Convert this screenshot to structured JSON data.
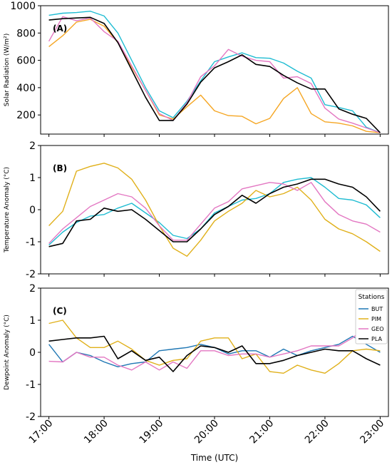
{
  "chart_data": [
    {
      "type": "line",
      "label": "(A)",
      "ylabel": "Solar Radiation (W/m²)",
      "ylim": [
        60,
        1000
      ],
      "yticks": [
        200,
        400,
        600,
        800,
        1000
      ],
      "x": [
        17.0,
        17.25,
        17.5,
        17.75,
        18.0,
        18.25,
        18.5,
        18.75,
        19.0,
        19.25,
        19.5,
        19.75,
        20.0,
        20.25,
        20.5,
        20.75,
        21.0,
        21.25,
        21.5,
        21.75,
        22.0,
        22.25,
        22.5,
        22.75,
        23.0
      ],
      "series": [
        {
          "name": "BUT",
          "color": "#1fbcd2",
          "values": [
            930,
            945,
            950,
            960,
            925,
            800,
            600,
            400,
            230,
            180,
            300,
            450,
            590,
            625,
            655,
            620,
            615,
            580,
            520,
            470,
            275,
            255,
            230,
            110,
            70
          ]
        },
        {
          "name": "PIM",
          "color": "#f5a623",
          "values": [
            700,
            780,
            880,
            900,
            850,
            730,
            550,
            380,
            200,
            170,
            260,
            345,
            230,
            195,
            190,
            135,
            175,
            320,
            400,
            210,
            150,
            140,
            120,
            80,
            70
          ]
        },
        {
          "name": "GEO",
          "color": "#e377c2",
          "values": [
            740,
            920,
            890,
            910,
            810,
            740,
            560,
            380,
            210,
            160,
            290,
            480,
            560,
            680,
            630,
            600,
            590,
            470,
            480,
            430,
            250,
            170,
            140,
            105,
            70
          ]
        },
        {
          "name": "PLA",
          "color": "#000000",
          "values": [
            895,
            905,
            910,
            915,
            870,
            730,
            530,
            330,
            160,
            160,
            280,
            440,
            545,
            590,
            640,
            570,
            555,
            490,
            435,
            390,
            390,
            245,
            205,
            175,
            70
          ]
        }
      ]
    },
    {
      "type": "line",
      "label": "(B)",
      "ylabel": "Temperature Anomaly (°C)",
      "ylim": [
        -2,
        2
      ],
      "yticks": [
        -2,
        -1,
        0,
        1,
        2
      ],
      "x": [
        17.0,
        17.25,
        17.5,
        17.75,
        18.0,
        18.25,
        18.5,
        18.75,
        19.0,
        19.25,
        19.5,
        19.75,
        20.0,
        20.25,
        20.5,
        20.75,
        21.0,
        21.25,
        21.5,
        21.75,
        22.0,
        22.25,
        22.5,
        22.75,
        23.0
      ],
      "series": [
        {
          "name": "BUT",
          "color": "#1fbcd2",
          "values": [
            -1.1,
            -0.7,
            -0.4,
            -0.2,
            -0.15,
            0.05,
            0.2,
            -0.1,
            -0.4,
            -0.8,
            -0.9,
            -0.6,
            -0.1,
            0.1,
            0.3,
            0.35,
            0.5,
            0.85,
            0.95,
            1.0,
            0.7,
            0.35,
            0.3,
            0.15,
            -0.25
          ]
        },
        {
          "name": "PIM",
          "color": "#e0b01a",
          "values": [
            -0.5,
            -0.05,
            1.2,
            1.35,
            1.45,
            1.3,
            0.95,
            0.3,
            -0.5,
            -1.2,
            -1.45,
            -0.95,
            -0.35,
            -0.05,
            0.2,
            0.6,
            0.4,
            0.5,
            0.7,
            0.3,
            -0.3,
            -0.6,
            -0.75,
            -1.0,
            -1.3
          ]
        },
        {
          "name": "GEO",
          "color": "#e377c2",
          "values": [
            -1.05,
            -0.6,
            -0.25,
            0.1,
            0.3,
            0.5,
            0.4,
            0.05,
            -0.5,
            -0.95,
            -0.95,
            -0.45,
            0.05,
            0.25,
            0.65,
            0.75,
            0.85,
            0.8,
            0.6,
            0.85,
            0.25,
            -0.15,
            -0.35,
            -0.45,
            -0.7
          ]
        },
        {
          "name": "PLA",
          "color": "#000000",
          "values": [
            -1.15,
            -1.05,
            -0.35,
            -0.3,
            0.05,
            -0.05,
            0.0,
            -0.3,
            -0.65,
            -1.0,
            -1.0,
            -0.6,
            -0.15,
            0.1,
            0.45,
            0.2,
            0.5,
            0.7,
            0.8,
            0.95,
            0.95,
            0.8,
            0.7,
            0.4,
            -0.05
          ]
        }
      ]
    },
    {
      "type": "line",
      "label": "(C)",
      "ylabel": "Dewpoint Anomaly (°C)",
      "xlabel": "Time (UTC)",
      "ylim": [
        -2,
        2
      ],
      "yticks": [
        -2,
        -1,
        0,
        1,
        2
      ],
      "xticks": [
        "17:00",
        "18:00",
        "19:00",
        "20:00",
        "21:00",
        "22:00",
        "23:00"
      ],
      "legend_title": "Stations",
      "legend_placement": "top-right",
      "x": [
        17.0,
        17.25,
        17.5,
        17.75,
        18.0,
        18.25,
        18.5,
        18.75,
        19.0,
        19.25,
        19.5,
        19.75,
        20.0,
        20.25,
        20.5,
        20.75,
        21.0,
        21.25,
        21.5,
        21.75,
        22.0,
        22.25,
        22.5,
        22.75,
        23.0
      ],
      "series": [
        {
          "name": "BUT",
          "color": "#1f77b4",
          "values": [
            0.25,
            -0.3,
            0.0,
            -0.1,
            -0.3,
            -0.45,
            -0.35,
            -0.3,
            0.05,
            0.1,
            0.15,
            0.25,
            0.15,
            -0.05,
            0.05,
            0.05,
            -0.15,
            0.1,
            -0.1,
            0.05,
            0.15,
            0.25,
            0.5,
            0.25,
            0.0
          ]
        },
        {
          "name": "PIM",
          "color": "#e0b01a",
          "values": [
            0.9,
            1.0,
            0.45,
            0.15,
            0.15,
            0.35,
            0.1,
            -0.25,
            -0.4,
            -0.25,
            -0.2,
            0.35,
            0.45,
            0.45,
            -0.2,
            -0.05,
            -0.6,
            -0.65,
            -0.4,
            -0.55,
            -0.65,
            -0.35,
            0.05,
            0.1,
            0.05
          ]
        },
        {
          "name": "GEO",
          "color": "#e377c2",
          "values": [
            -0.28,
            -0.3,
            0.0,
            -0.15,
            -0.15,
            -0.4,
            -0.55,
            -0.3,
            -0.55,
            -0.3,
            -0.5,
            0.05,
            0.05,
            -0.1,
            -0.05,
            -0.05,
            -0.15,
            -0.05,
            0.05,
            0.2,
            0.2,
            0.2,
            0.45,
            0.8,
            1.15
          ]
        },
        {
          "name": "PLA",
          "color": "#000000",
          "values": [
            0.35,
            0.4,
            0.45,
            0.45,
            0.5,
            -0.2,
            0.05,
            -0.25,
            -0.15,
            -0.6,
            -0.1,
            0.2,
            0.15,
            0.0,
            0.2,
            -0.35,
            -0.35,
            -0.25,
            -0.1,
            0.0,
            0.1,
            0.05,
            0.05,
            -0.2,
            -0.4
          ]
        }
      ]
    }
  ]
}
